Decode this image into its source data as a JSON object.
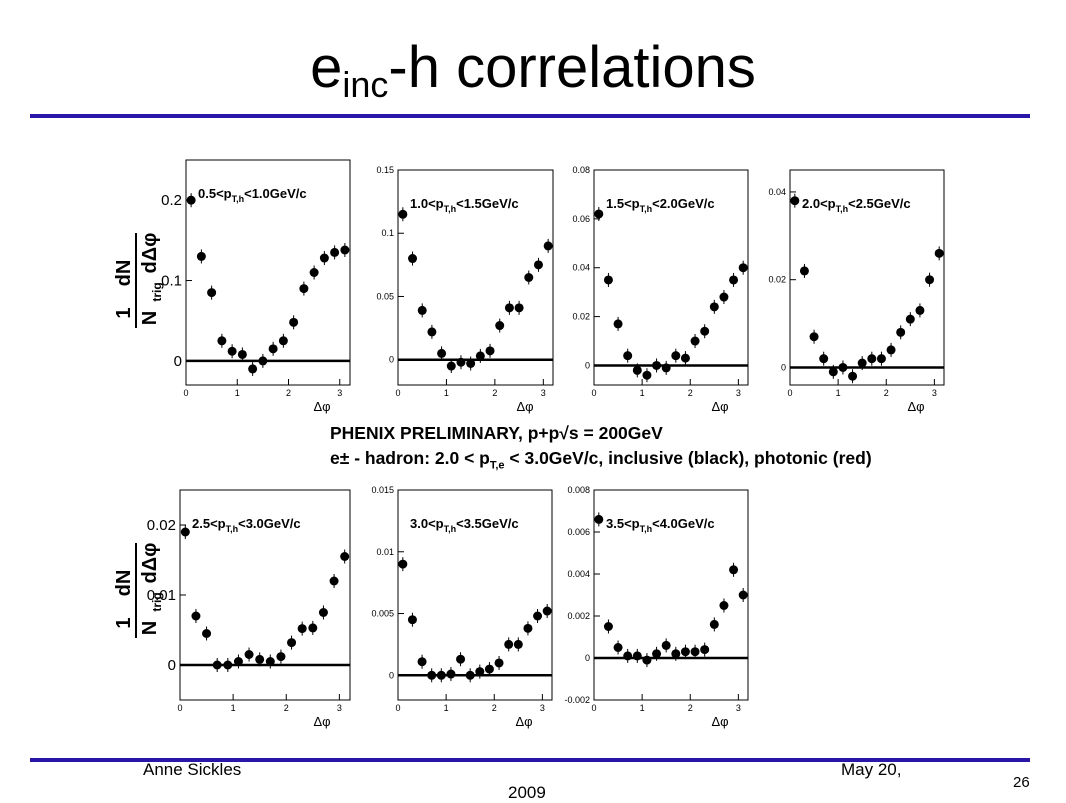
{
  "slide": {
    "title_main": "e",
    "title_sub": "inc",
    "title_rest": "-h correlations",
    "author": "Anne Sickles",
    "date_line1": "May 20,",
    "date_line2": "2009",
    "page_number": "26",
    "accent_color": "#2a16a8"
  },
  "y_axis_label": {
    "numerator": "1",
    "dN": "dN",
    "N": "N",
    "trig": "trig",
    "dphi": "dΔφ"
  },
  "caption": {
    "line1": "PHENIX PRELIMINARY, p+p√s = 200GeV",
    "line2": "e± - hadron: 2.0 < p",
    "line2_sub": "T,e",
    "line2_rest": " < 3.0GeV/c, inclusive (black), photonic (red)"
  },
  "chart_data": [
    {
      "type": "scatter",
      "panel_label": "0.5<p",
      "panel_label_sub": "T,h",
      "panel_label_rest": "<1.0GeV/c",
      "xlabel": "Δφ",
      "xlim": [
        0,
        3.2
      ],
      "ylim": [
        -0.03,
        0.25
      ],
      "xticks": [
        "0",
        "1",
        "2",
        "3"
      ],
      "yticks": [
        {
          "v": 0,
          "t": "0"
        },
        {
          "v": 0.1,
          "t": "0.1"
        },
        {
          "v": 0.2,
          "t": "0.2"
        }
      ],
      "x": [
        0.1,
        0.3,
        0.5,
        0.7,
        0.9,
        1.1,
        1.3,
        1.5,
        1.7,
        1.9,
        2.1,
        2.3,
        2.5,
        2.7,
        2.9,
        3.1
      ],
      "y": [
        0.2,
        0.13,
        0.085,
        0.025,
        0.012,
        0.008,
        -0.01,
        0.0,
        0.015,
        0.025,
        0.048,
        0.09,
        0.11,
        0.128,
        0.135,
        0.138
      ]
    },
    {
      "type": "scatter",
      "panel_label": "1.0<p",
      "panel_label_sub": "T,h",
      "panel_label_rest": "<1.5GeV/c",
      "xlabel": "Δφ",
      "xlim": [
        0,
        3.2
      ],
      "ylim": [
        -0.02,
        0.15
      ],
      "xticks": [
        "0",
        "1",
        "2",
        "3"
      ],
      "yticks": [
        {
          "v": 0,
          "t": "0"
        },
        {
          "v": 0.05,
          "t": "0.05"
        },
        {
          "v": 0.1,
          "t": "0.1"
        },
        {
          "v": 0.15,
          "t": "0.15"
        }
      ],
      "x": [
        0.1,
        0.3,
        0.5,
        0.7,
        0.9,
        1.1,
        1.3,
        1.5,
        1.7,
        1.9,
        2.1,
        2.3,
        2.5,
        2.7,
        2.9,
        3.1
      ],
      "y": [
        0.115,
        0.08,
        0.039,
        0.022,
        0.005,
        -0.005,
        -0.002,
        -0.003,
        0.003,
        0.007,
        0.027,
        0.041,
        0.041,
        0.065,
        0.075,
        0.09
      ]
    },
    {
      "type": "scatter",
      "panel_label": "1.5<p",
      "panel_label_sub": "T,h",
      "panel_label_rest": "<2.0GeV/c",
      "xlabel": "Δφ",
      "xlim": [
        0,
        3.2
      ],
      "ylim": [
        -0.008,
        0.08
      ],
      "xticks": [
        "0",
        "1",
        "2",
        "3"
      ],
      "yticks": [
        {
          "v": 0,
          "t": "0"
        },
        {
          "v": 0.02,
          "t": "0.02"
        },
        {
          "v": 0.04,
          "t": "0.04"
        },
        {
          "v": 0.06,
          "t": "0.06"
        },
        {
          "v": 0.08,
          "t": "0.08"
        }
      ],
      "x": [
        0.1,
        0.3,
        0.5,
        0.7,
        0.9,
        1.1,
        1.3,
        1.5,
        1.7,
        1.9,
        2.1,
        2.3,
        2.5,
        2.7,
        2.9,
        3.1
      ],
      "y": [
        0.062,
        0.035,
        0.017,
        0.004,
        -0.002,
        -0.004,
        0.0,
        -0.001,
        0.004,
        0.003,
        0.01,
        0.014,
        0.024,
        0.028,
        0.035,
        0.04
      ]
    },
    {
      "type": "scatter",
      "panel_label": "2.0<p",
      "panel_label_sub": "T,h",
      "panel_label_rest": "<2.5GeV/c",
      "xlabel": "Δφ",
      "xlim": [
        0,
        3.2
      ],
      "ylim": [
        -0.004,
        0.045
      ],
      "xticks": [
        "0",
        "1",
        "2",
        "3"
      ],
      "yticks": [
        {
          "v": 0,
          "t": "0"
        },
        {
          "v": 0.02,
          "t": "0.02"
        },
        {
          "v": 0.04,
          "t": "0.04"
        }
      ],
      "x": [
        0.1,
        0.3,
        0.5,
        0.7,
        0.9,
        1.1,
        1.3,
        1.5,
        1.7,
        1.9,
        2.1,
        2.3,
        2.5,
        2.7,
        2.9,
        3.1
      ],
      "y": [
        0.038,
        0.022,
        0.007,
        0.002,
        -0.001,
        0.0,
        -0.002,
        0.001,
        0.002,
        0.002,
        0.004,
        0.008,
        0.011,
        0.013,
        0.02,
        0.026
      ]
    },
    {
      "type": "scatter",
      "panel_label": "2.5<p",
      "panel_label_sub": "T,h",
      "panel_label_rest": "<3.0GeV/c",
      "xlabel": "Δφ",
      "xlim": [
        0,
        3.2
      ],
      "ylim": [
        -0.005,
        0.025
      ],
      "xticks": [
        "0",
        "1",
        "2",
        "3"
      ],
      "yticks": [
        {
          "v": 0,
          "t": "0"
        },
        {
          "v": 0.01,
          "t": "0.01"
        },
        {
          "v": 0.02,
          "t": "0.02"
        }
      ],
      "x": [
        0.1,
        0.3,
        0.5,
        0.7,
        0.9,
        1.1,
        1.3,
        1.5,
        1.7,
        1.9,
        2.1,
        2.3,
        2.5,
        2.7,
        2.9,
        3.1
      ],
      "y": [
        0.019,
        0.007,
        0.0045,
        0.0,
        0.0,
        0.0005,
        0.0015,
        0.0008,
        0.0005,
        0.0012,
        0.0032,
        0.0052,
        0.0053,
        0.0075,
        0.012,
        0.0155
      ]
    },
    {
      "type": "scatter",
      "panel_label": "3.0<p",
      "panel_label_sub": "T,h",
      "panel_label_rest": "<3.5GeV/c",
      "xlabel": "Δφ",
      "xlim": [
        0,
        3.2
      ],
      "ylim": [
        -0.002,
        0.015
      ],
      "xticks": [
        "0",
        "1",
        "2",
        "3"
      ],
      "yticks": [
        {
          "v": 0,
          "t": "0"
        },
        {
          "v": 0.005,
          "t": "0.005"
        },
        {
          "v": 0.01,
          "t": "0.01"
        },
        {
          "v": 0.015,
          "t": "0.015"
        }
      ],
      "x": [
        0.1,
        0.3,
        0.5,
        0.7,
        0.9,
        1.1,
        1.3,
        1.5,
        1.7,
        1.9,
        2.1,
        2.3,
        2.5,
        2.7,
        2.9,
        3.1
      ],
      "y": [
        0.009,
        0.0045,
        0.0011,
        0.0,
        0.0,
        0.0001,
        0.0013,
        0.0,
        0.0003,
        0.0005,
        0.001,
        0.0025,
        0.0025,
        0.0038,
        0.0048,
        0.0052
      ]
    },
    {
      "type": "scatter",
      "panel_label": "3.5<p",
      "panel_label_sub": "T,h",
      "panel_label_rest": "<4.0GeV/c",
      "xlabel": "Δφ",
      "xlim": [
        0,
        3.2
      ],
      "ylim": [
        -0.002,
        0.008
      ],
      "xticks": [
        "0",
        "1",
        "2",
        "3"
      ],
      "yticks": [
        {
          "v": -0.002,
          "t": "-0.002"
        },
        {
          "v": 0,
          "t": "0"
        },
        {
          "v": 0.002,
          "t": "0.002"
        },
        {
          "v": 0.004,
          "t": "0.004"
        },
        {
          "v": 0.006,
          "t": "0.006"
        },
        {
          "v": 0.008,
          "t": "0.008"
        }
      ],
      "x": [
        0.1,
        0.3,
        0.5,
        0.7,
        0.9,
        1.1,
        1.3,
        1.5,
        1.7,
        1.9,
        2.1,
        2.3,
        2.5,
        2.7,
        2.9,
        3.1
      ],
      "y": [
        0.0066,
        0.0015,
        0.0005,
        0.0001,
        0.0001,
        -0.0001,
        0.0002,
        0.0006,
        0.0002,
        0.0003,
        0.0003,
        0.0004,
        0.0016,
        0.0025,
        0.0042,
        0.003
      ]
    }
  ]
}
